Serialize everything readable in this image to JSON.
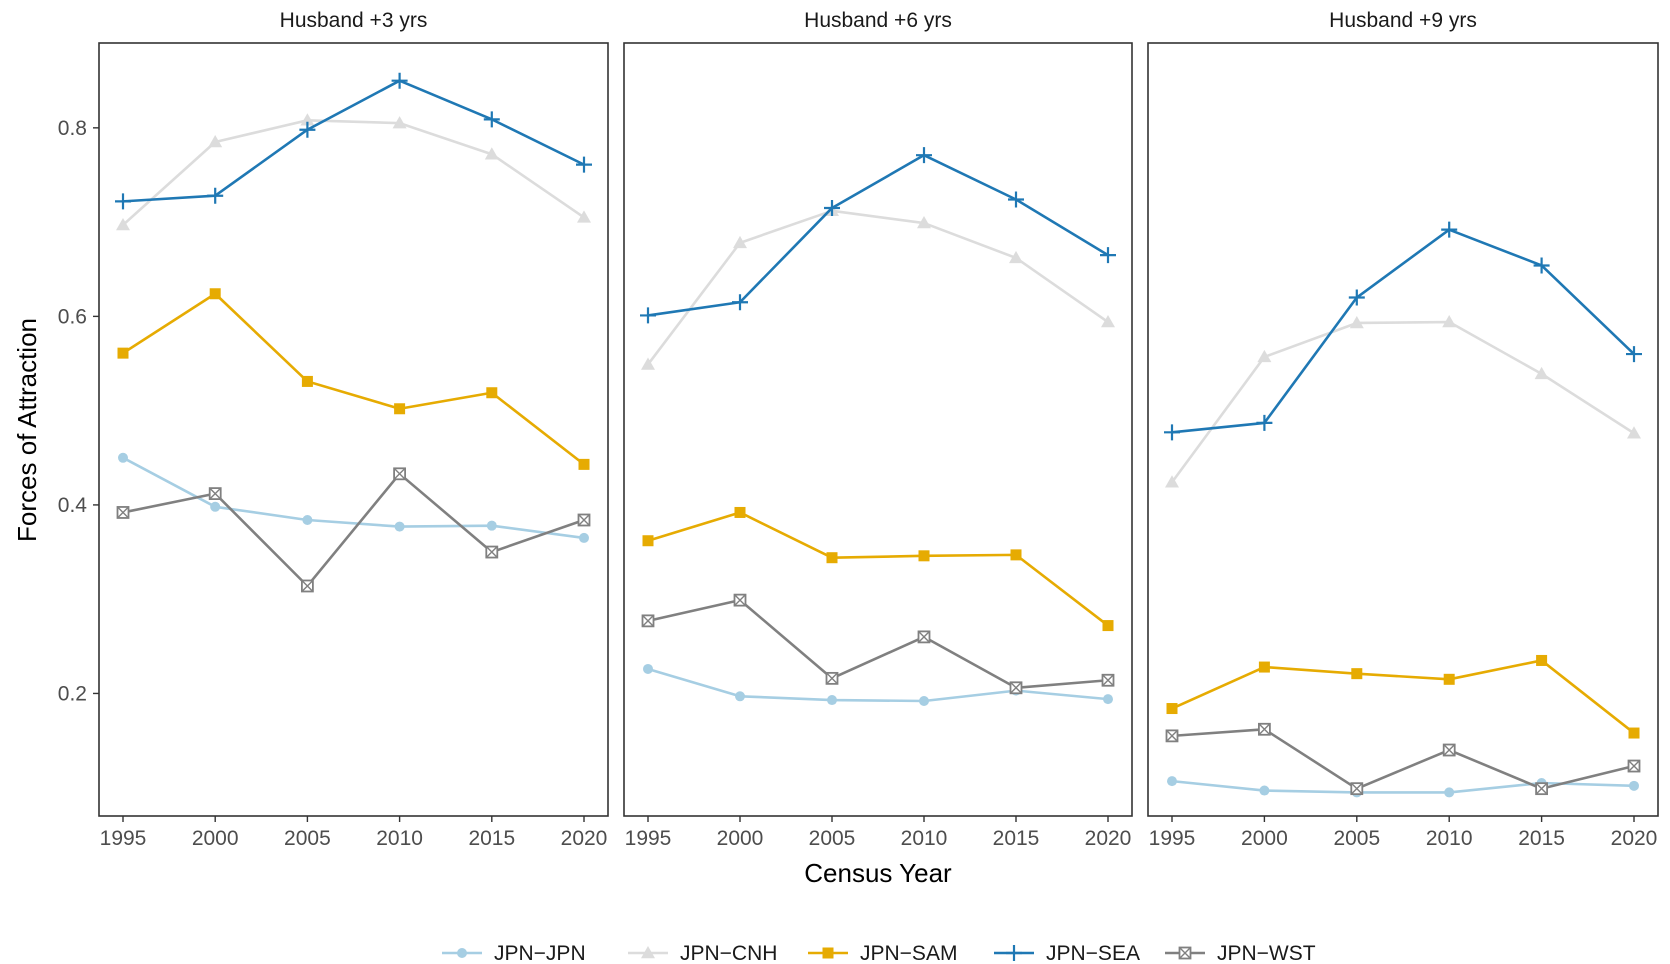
{
  "chart_data": {
    "type": "line",
    "xlabel": "Census Year",
    "ylabel": "Forces of Attraction",
    "x": [
      1995,
      2000,
      2005,
      2010,
      2015,
      2020
    ],
    "x_ticks": [
      "1995",
      "2000",
      "2005",
      "2010",
      "2015",
      "2020"
    ],
    "y_ticks": [
      0.2,
      0.4,
      0.6,
      0.8
    ],
    "y_tick_labels": [
      "0.2",
      "0.4",
      "0.6",
      "0.8"
    ],
    "ylim": [
      0.07,
      0.89
    ],
    "grid": false,
    "legend_position": "bottom",
    "series_styles": [
      {
        "name": "JPN−JPN",
        "color": "#a6cee3",
        "marker": "circle"
      },
      {
        "name": "JPN−CNH",
        "color": "#dcdcdc",
        "marker": "triangle"
      },
      {
        "name": "JPN−SAM",
        "color": "#e6ab02",
        "marker": "square"
      },
      {
        "name": "JPN−SEA",
        "color": "#1f78b4",
        "marker": "plus"
      },
      {
        "name": "JPN−WST",
        "color": "#808080",
        "marker": "square-cross"
      }
    ],
    "panels": [
      {
        "title": "Husband +3 yrs",
        "series": [
          {
            "name": "JPN−JPN",
            "values": [
              0.45,
              0.398,
              0.384,
              0.377,
              0.378,
              0.365
            ]
          },
          {
            "name": "JPN−CNH",
            "values": [
              0.697,
              0.785,
              0.808,
              0.805,
              0.772,
              0.705
            ]
          },
          {
            "name": "JPN−SAM",
            "values": [
              0.561,
              0.624,
              0.531,
              0.502,
              0.519,
              0.443
            ]
          },
          {
            "name": "JPN−SEA",
            "values": [
              0.722,
              0.728,
              0.798,
              0.85,
              0.809,
              0.761
            ]
          },
          {
            "name": "JPN−WST",
            "values": [
              0.392,
              0.412,
              0.314,
              0.433,
              0.35,
              0.384
            ]
          }
        ]
      },
      {
        "title": "Husband +6 yrs",
        "series": [
          {
            "name": "JPN−JPN",
            "values": [
              0.226,
              0.197,
              0.193,
              0.192,
              0.203,
              0.194
            ]
          },
          {
            "name": "JPN−CNH",
            "values": [
              0.549,
              0.678,
              0.712,
              0.699,
              0.662,
              0.594
            ]
          },
          {
            "name": "JPN−SAM",
            "values": [
              0.362,
              0.392,
              0.344,
              0.346,
              0.347,
              0.272
            ]
          },
          {
            "name": "JPN−SEA",
            "values": [
              0.601,
              0.615,
              0.715,
              0.771,
              0.724,
              0.665
            ]
          },
          {
            "name": "JPN−WST",
            "values": [
              0.277,
              0.299,
              0.216,
              0.26,
              0.206,
              0.214
            ]
          }
        ]
      },
      {
        "title": "Husband +9 yrs",
        "series": [
          {
            "name": "JPN−JPN",
            "values": [
              0.107,
              0.097,
              0.095,
              0.095,
              0.105,
              0.102
            ]
          },
          {
            "name": "JPN−CNH",
            "values": [
              0.424,
              0.557,
              0.593,
              0.594,
              0.539,
              0.476
            ]
          },
          {
            "name": "JPN−SAM",
            "values": [
              0.184,
              0.228,
              0.221,
              0.215,
              0.235,
              0.158
            ]
          },
          {
            "name": "JPN−SEA",
            "values": [
              0.477,
              0.487,
              0.62,
              0.692,
              0.654,
              0.56
            ]
          },
          {
            "name": "JPN−WST",
            "values": [
              0.155,
              0.162,
              0.099,
              0.14,
              0.099,
              0.123
            ]
          }
        ]
      }
    ]
  }
}
